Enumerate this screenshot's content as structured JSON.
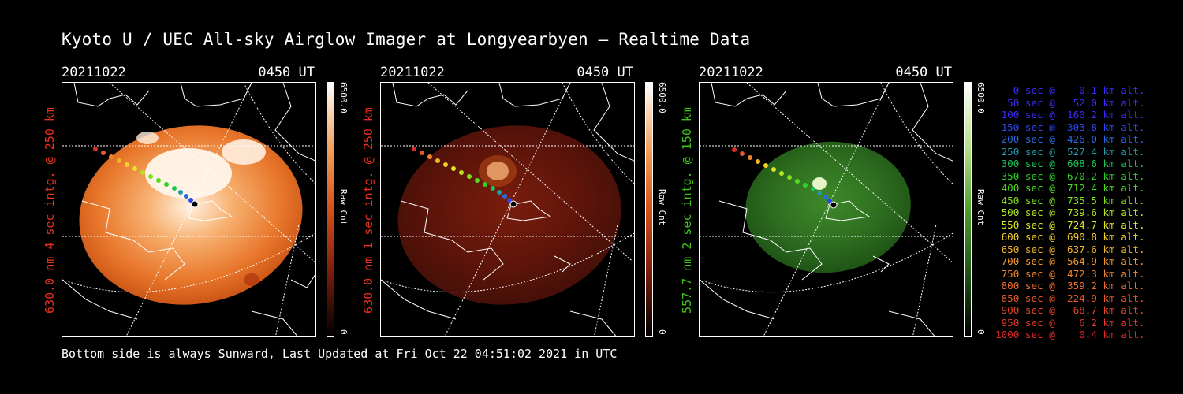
{
  "title": "Kyoto U / UEC All-sky Airglow Imager at Longyearbyen — Realtime Data",
  "footer": "Bottom side is always Sunward, Last Updated at Fri Oct 22 04:51:02 2021 in UTC",
  "panels": [
    {
      "date": "20211022",
      "time": "0450 UT",
      "ylabel": "630.0 nm 4 sec intg. @ 250 km",
      "label_color": "#e8301c",
      "colorbar_max": "6500.0",
      "colorbar_min": "0",
      "colorbar_unit": "Raw Cnt"
    },
    {
      "date": "20211022",
      "time": "0450 UT",
      "ylabel": "630.0 nm 1 sec intg. @ 250 km",
      "label_color": "#e8301c",
      "colorbar_max": "6500.0",
      "colorbar_min": "0",
      "colorbar_unit": "Raw Cnt"
    },
    {
      "date": "20211022",
      "time": "0450 UT",
      "ylabel": "557.7 nm 2 sec intg. @ 150 km",
      "label_color": "#3fc51a",
      "colorbar_max": "6500.0",
      "colorbar_min": "0",
      "colorbar_unit": "Raw Cnt"
    }
  ],
  "trajectory": [
    {
      "text": "   0 sec @    0.1 km alt.",
      "color": "#3a2cf5"
    },
    {
      "text": "  50 sec @   52.0 km alt.",
      "color": "#3a2cf5"
    },
    {
      "text": " 100 sec @  160.2 km alt.",
      "color": "#3a2cf5"
    },
    {
      "text": " 150 sec @  303.8 km alt.",
      "color": "#2d48ea"
    },
    {
      "text": " 200 sec @  426.0 km alt.",
      "color": "#2a6ae0"
    },
    {
      "text": " 250 sec @  527.4 km alt.",
      "color": "#209aa8"
    },
    {
      "text": " 300 sec @  608.6 km alt.",
      "color": "#1ec25a"
    },
    {
      "text": " 350 sec @  670.2 km alt.",
      "color": "#2ed12a"
    },
    {
      "text": " 400 sec @  712.4 km alt.",
      "color": "#50dc22"
    },
    {
      "text": " 450 sec @  735.5 km alt.",
      "color": "#7fe21c"
    },
    {
      "text": " 500 sec @  739.6 km alt.",
      "color": "#b3e620"
    },
    {
      "text": " 550 sec @  724.7 km alt.",
      "color": "#e0e624"
    },
    {
      "text": " 600 sec @  690.8 km alt.",
      "color": "#f2d02a"
    },
    {
      "text": " 650 sec @  637.6 km alt.",
      "color": "#f2b42a"
    },
    {
      "text": " 700 sec @  564.9 km alt.",
      "color": "#f19a2c"
    },
    {
      "text": " 750 sec @  472.3 km alt.",
      "color": "#ee842e"
    },
    {
      "text": " 800 sec @  359.2 km alt.",
      "color": "#ec6e2e"
    },
    {
      "text": " 850 sec @  224.9 km alt.",
      "color": "#e8582c"
    },
    {
      "text": " 900 sec @   68.7 km alt.",
      "color": "#e5442a"
    },
    {
      "text": " 950 sec @    6.2 km alt.",
      "color": "#e33628"
    },
    {
      "text": "1000 sec @    0.4 km alt.",
      "color": "#e02a26"
    }
  ]
}
